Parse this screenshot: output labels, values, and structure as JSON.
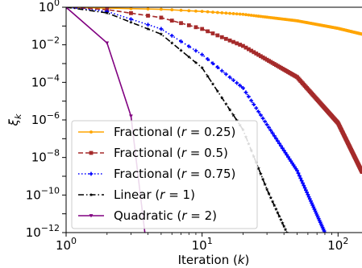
{
  "chart_data": {
    "type": "line",
    "xscale": "log",
    "yscale": "log",
    "xlim": [
      1,
      150
    ],
    "ylim": [
      1e-12,
      1
    ],
    "xlabel": "Iteration (k)",
    "ylabel": "ξ_k",
    "x_ticks": [
      {
        "value": 1,
        "base": "10",
        "exp": "0"
      },
      {
        "value": 10,
        "base": "10",
        "exp": "1"
      },
      {
        "value": 100,
        "base": "10",
        "exp": "2"
      }
    ],
    "y_ticks": [
      {
        "value": 1,
        "base": "10",
        "exp": "0"
      },
      {
        "value": 0.01,
        "base": "10",
        "exp": "−2"
      },
      {
        "value": 0.0001,
        "base": "10",
        "exp": "−4"
      },
      {
        "value": 1e-06,
        "base": "10",
        "exp": "−6"
      },
      {
        "value": 1e-08,
        "base": "10",
        "exp": "−8"
      },
      {
        "value": 1e-10,
        "base": "10",
        "exp": "−10"
      },
      {
        "value": 1e-12,
        "base": "10",
        "exp": "−12"
      }
    ],
    "legend_position": "lower-left",
    "series": [
      {
        "name": "Fractional (r = 0.25)",
        "label_main": "Fractional (",
        "label_var": "r",
        "label_rest": " = 0.25)",
        "color": "#ffa500",
        "linestyle": "solid",
        "marker": "circle",
        "r": 0.25,
        "x": [
          1,
          5,
          10,
          20,
          50,
          100,
          150
        ],
        "y": [
          1,
          0.78,
          0.6,
          0.42,
          0.19,
          0.075,
          0.037
        ]
      },
      {
        "name": "Fractional (r = 0.5)",
        "label_main": "Fractional (",
        "label_var": "r",
        "label_rest": " = 0.5)",
        "color": "#a52a2a",
        "linestyle": "dashed",
        "marker": "square",
        "r": 0.5,
        "x": [
          1,
          2,
          5,
          10,
          20,
          50,
          100,
          150
        ],
        "y": [
          1,
          0.75,
          0.28,
          0.07,
          0.0087,
          0.00019,
          6.8e-07,
          1.7e-09
        ]
      },
      {
        "name": "Fractional (r = 0.75)",
        "label_main": "Fractional (",
        "label_var": "r",
        "label_rest": " = 0.75)",
        "color": "#0000ff",
        "linestyle": "dotted",
        "marker": "plus",
        "r": 0.75,
        "x": [
          1,
          2,
          5,
          10,
          20,
          50,
          80
        ],
        "y": [
          1,
          0.6,
          0.07,
          0.003,
          5e-05,
          2e-09,
          1e-12
        ]
      },
      {
        "name": "Linear (r = 1)",
        "label_main": "Linear (",
        "label_var": "r",
        "label_rest": " = 1)",
        "color": "#000000",
        "linestyle": "dashdot",
        "marker": "star",
        "r": 1,
        "x": [
          1,
          2,
          5,
          10,
          20,
          30,
          42
        ],
        "y": [
          1,
          0.5,
          0.037,
          0.0006,
          3e-07,
          2e-10,
          1e-12
        ]
      },
      {
        "name": "Quadratic (r = 2)",
        "label_main": "Quadratic (",
        "label_var": "r",
        "label_rest": " = 2)",
        "color": "#800080",
        "linestyle": "solid",
        "marker": "triangle_down",
        "r": 2,
        "x": [
          1,
          2,
          3,
          4
        ],
        "y": [
          1,
          0.0125,
          1.6e-06,
          4e-14
        ]
      }
    ]
  }
}
